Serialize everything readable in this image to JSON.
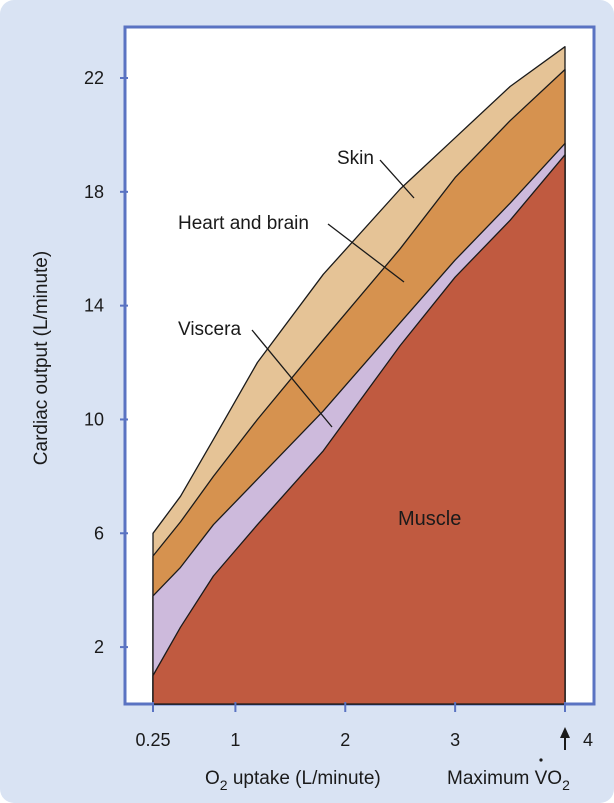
{
  "chart_data": {
    "type": "area",
    "stacked": true,
    "xlabel_prefix": "O",
    "xlabel_sub": "2",
    "xlabel_suffix": " uptake (L/minute)",
    "ylabel": "Cardiac output (L/minute)",
    "xlim": [
      0.25,
      4
    ],
    "ylim": [
      0,
      23
    ],
    "x_ticks": [
      {
        "value": 0.25,
        "label": "0.25"
      },
      {
        "value": 1,
        "label": "1"
      },
      {
        "value": 2,
        "label": "2"
      },
      {
        "value": 3,
        "label": "3"
      },
      {
        "value": 4,
        "label": "4"
      }
    ],
    "y_ticks": [
      {
        "value": 2,
        "label": "2"
      },
      {
        "value": 6,
        "label": "6"
      },
      {
        "value": 10,
        "label": "10"
      },
      {
        "value": 14,
        "label": "14"
      },
      {
        "value": 18,
        "label": "18"
      },
      {
        "value": 22,
        "label": "22"
      }
    ],
    "max_vo2_prefix": "Maximum V",
    "max_vo2_sub": "2",
    "max_vo2_o": "O",
    "max_vo2_value": 4,
    "series": [
      {
        "name": "Muscle",
        "color": "#c05a40",
        "x": [
          0.25,
          0.5,
          0.8,
          1.2,
          1.8,
          2.5,
          3.0,
          3.5,
          4.0
        ],
        "y": [
          1.0,
          2.7,
          4.5,
          6.3,
          8.9,
          12.6,
          15.0,
          17.0,
          19.3
        ]
      },
      {
        "name": "Viscera",
        "color": "#cdbadc",
        "x": [
          0.25,
          0.5,
          0.8,
          1.2,
          1.8,
          2.5,
          3.0,
          3.5,
          4.0
        ],
        "y": [
          3.8,
          4.8,
          6.3,
          7.9,
          10.3,
          13.4,
          15.6,
          17.6,
          19.7
        ]
      },
      {
        "name": "Heart and brain",
        "color": "#d6924f",
        "x": [
          0.25,
          0.5,
          0.8,
          1.2,
          1.8,
          2.5,
          3.0,
          3.5,
          4.0
        ],
        "y": [
          5.2,
          6.4,
          8.0,
          10.0,
          12.8,
          16.0,
          18.5,
          20.5,
          22.3
        ]
      },
      {
        "name": "Skin",
        "color": "#e5c396",
        "x": [
          0.25,
          0.5,
          0.8,
          1.2,
          1.8,
          2.5,
          3.0,
          3.5,
          4.0
        ],
        "y": [
          6.0,
          7.3,
          9.3,
          12.0,
          15.1,
          18.1,
          19.9,
          21.7,
          23.1
        ]
      }
    ],
    "annotations": [
      {
        "text": "Skin",
        "target": "Skin"
      },
      {
        "text": "Heart and brain",
        "target": "Heart and brain"
      },
      {
        "text": "Viscera",
        "target": "Viscera"
      },
      {
        "text": "Muscle",
        "target": "Muscle"
      }
    ]
  }
}
